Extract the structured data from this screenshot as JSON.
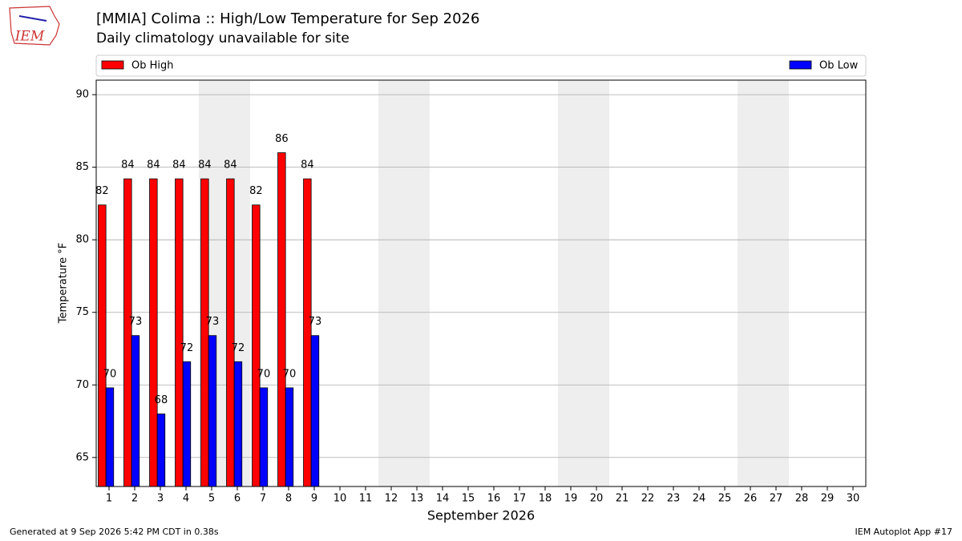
{
  "chart_data": {
    "type": "bar",
    "title": "[MMIA] Colima :: High/Low Temperature for Sep 2026",
    "subtitle": "Daily climatology unavailable for site",
    "logo_text": "IEM",
    "ylabel": "Temperature °F",
    "xlabel": "September 2026",
    "footer_left": "Generated at 9 Sep 2026 5:42 PM CDT in 0.38s",
    "footer_right": "IEM Autoplot App #17",
    "x": [
      1,
      2,
      3,
      4,
      5,
      6,
      7,
      8,
      9,
      10,
      11,
      12,
      13,
      14,
      15,
      16,
      17,
      18,
      19,
      20,
      21,
      22,
      23,
      24,
      25,
      26,
      27,
      28,
      29,
      30
    ],
    "series": [
      {
        "name": "Ob High",
        "color": "#ff0000",
        "values": [
          82.4,
          84.2,
          84.2,
          84.2,
          84.2,
          84.2,
          82.4,
          86,
          84.2,
          null,
          null,
          null,
          null,
          null,
          null,
          null,
          null,
          null,
          null,
          null,
          null,
          null,
          null,
          null,
          null,
          null,
          null,
          null,
          null,
          null
        ],
        "value_labels": [
          "82",
          "84",
          "84",
          "84",
          "84",
          "84",
          "82",
          "86",
          "84",
          null,
          null,
          null,
          null,
          null,
          null,
          null,
          null,
          null,
          null,
          null,
          null,
          null,
          null,
          null,
          null,
          null,
          null,
          null,
          null,
          null
        ]
      },
      {
        "name": "Ob Low",
        "color": "#0000ff",
        "values": [
          69.8,
          73.4,
          68,
          71.6,
          73.4,
          71.6,
          69.8,
          69.8,
          73.4,
          null,
          null,
          null,
          null,
          null,
          null,
          null,
          null,
          null,
          null,
          null,
          null,
          null,
          null,
          null,
          null,
          null,
          null,
          null,
          null,
          null
        ],
        "value_labels": [
          "70",
          "73",
          "68",
          "72",
          "73",
          "72",
          "70",
          "70",
          "73",
          null,
          null,
          null,
          null,
          null,
          null,
          null,
          null,
          null,
          null,
          null,
          null,
          null,
          null,
          null,
          null,
          null,
          null,
          null,
          null,
          null
        ]
      }
    ],
    "shaded_x": [
      5,
      6,
      12,
      13,
      19,
      20,
      26,
      27
    ],
    "xlim": [
      0.5,
      30.5
    ],
    "xticks": [
      1,
      2,
      3,
      4,
      5,
      6,
      7,
      8,
      9,
      10,
      11,
      12,
      13,
      14,
      15,
      16,
      17,
      18,
      19,
      20,
      21,
      22,
      23,
      24,
      25,
      26,
      27,
      28,
      29,
      30
    ],
    "ylim": [
      63,
      91
    ],
    "yticks": [
      65,
      70,
      75,
      80,
      85,
      90
    ],
    "grid": true
  }
}
